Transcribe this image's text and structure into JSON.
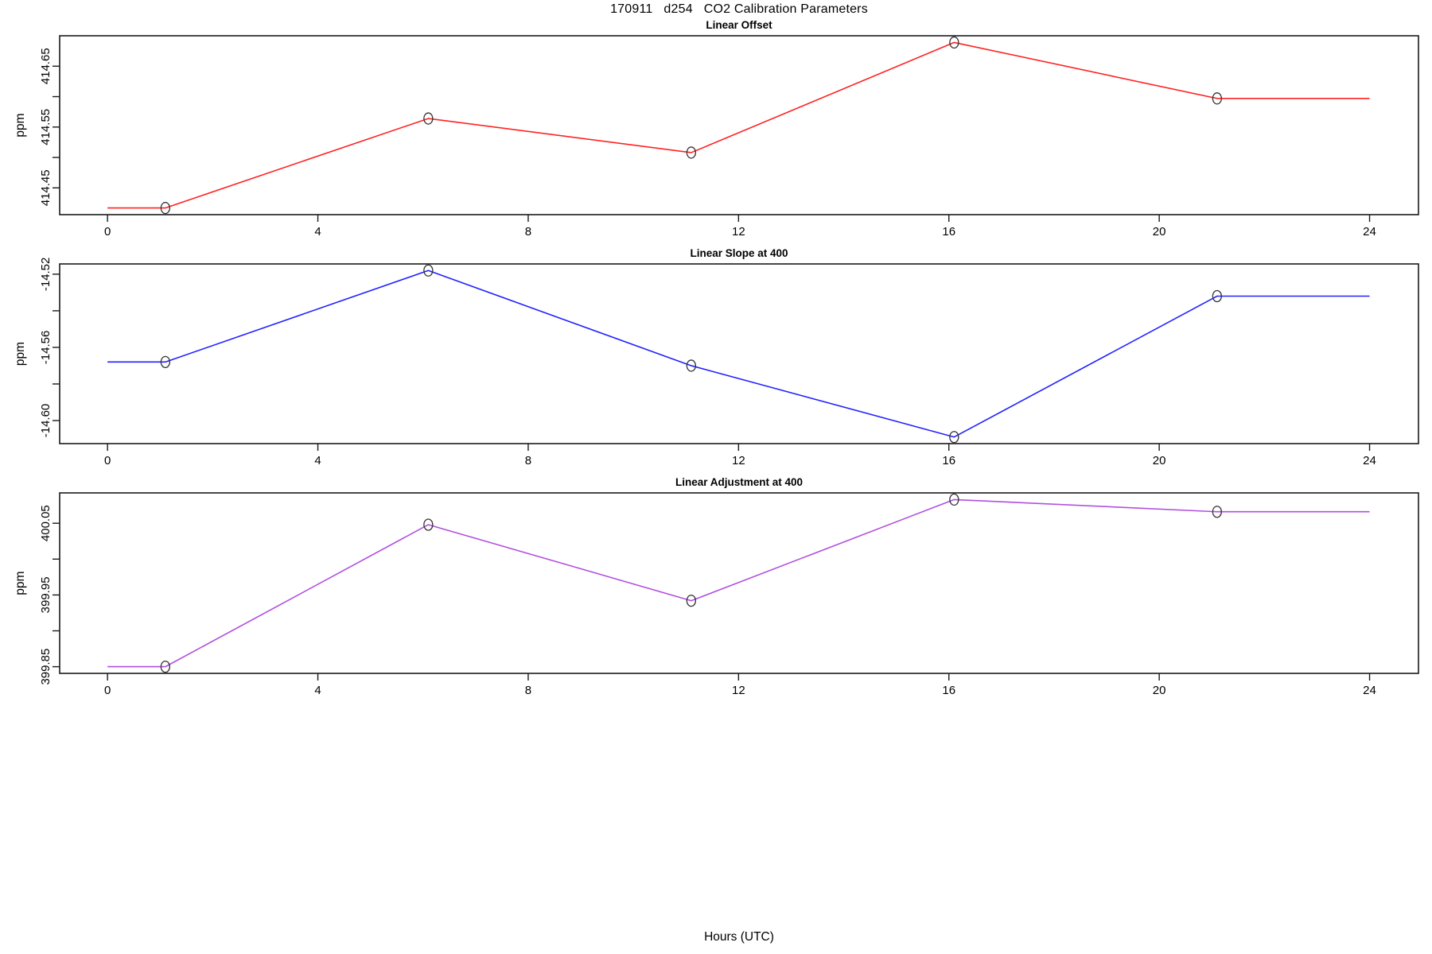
{
  "figure": {
    "title": "170911   d254   CO2 Calibration Parameters",
    "xlabel": "Hours (UTC)",
    "x_ticks": [
      0,
      4,
      8,
      12,
      16,
      20,
      24
    ],
    "xlim": [
      -0.91,
      24.93
    ],
    "background": "#ffffff",
    "axis_color": "#1a1a1a",
    "marker_color": "#333333"
  },
  "chart_data": [
    {
      "type": "line",
      "title": "Linear Offset",
      "ylabel": "ppm",
      "color": "#ff2222",
      "x": [
        0,
        1.1,
        6.1,
        11.1,
        16.1,
        21.1,
        24
      ],
      "y": [
        414.417,
        414.417,
        414.564,
        414.508,
        414.689,
        414.597,
        414.597
      ],
      "marker_indices": [
        1,
        2,
        3,
        4,
        5
      ],
      "marker": "open-circle",
      "y_ticks": [
        414.45,
        414.5,
        414.55,
        414.6,
        414.65
      ],
      "y_tick_labels": [
        "414.45",
        "",
        "414.55",
        "",
        "414.65"
      ],
      "ylim": [
        414.406,
        414.7
      ],
      "grid": false,
      "legend": "none"
    },
    {
      "type": "line",
      "title": "Linear Slope at 400",
      "ylabel": "ppm",
      "color": "#2222ff",
      "x": [
        0,
        1.1,
        6.1,
        11.1,
        16.1,
        21.1,
        24
      ],
      "y": [
        -14.568,
        -14.568,
        -14.518,
        -14.57,
        -14.609,
        -14.532,
        -14.532
      ],
      "marker_indices": [
        1,
        2,
        3,
        4,
        5
      ],
      "marker": "open-circle",
      "y_ticks": [
        -14.6,
        -14.58,
        -14.56,
        -14.54,
        -14.52
      ],
      "y_tick_labels": [
        "-14.60",
        "",
        "-14.56",
        "",
        "-14.52"
      ],
      "ylim": [
        -14.6126,
        -14.5144
      ],
      "grid": false,
      "legend": "none"
    },
    {
      "type": "line",
      "title": "Linear Adjustment at 400",
      "ylabel": "ppm",
      "color": "#b14fe0",
      "x": [
        0,
        1.1,
        6.1,
        11.1,
        16.1,
        21.1,
        24
      ],
      "y": [
        399.85,
        399.85,
        400.048,
        399.942,
        400.083,
        400.066,
        400.066
      ],
      "marker_indices": [
        1,
        2,
        3,
        4,
        5
      ],
      "marker": "open-circle",
      "y_ticks": [
        399.85,
        399.9,
        399.95,
        400.0,
        400.05
      ],
      "y_tick_labels": [
        "399.85",
        "",
        "399.95",
        "",
        "400.05"
      ],
      "ylim": [
        399.8407,
        400.0923
      ],
      "grid": false,
      "legend": "none"
    }
  ]
}
